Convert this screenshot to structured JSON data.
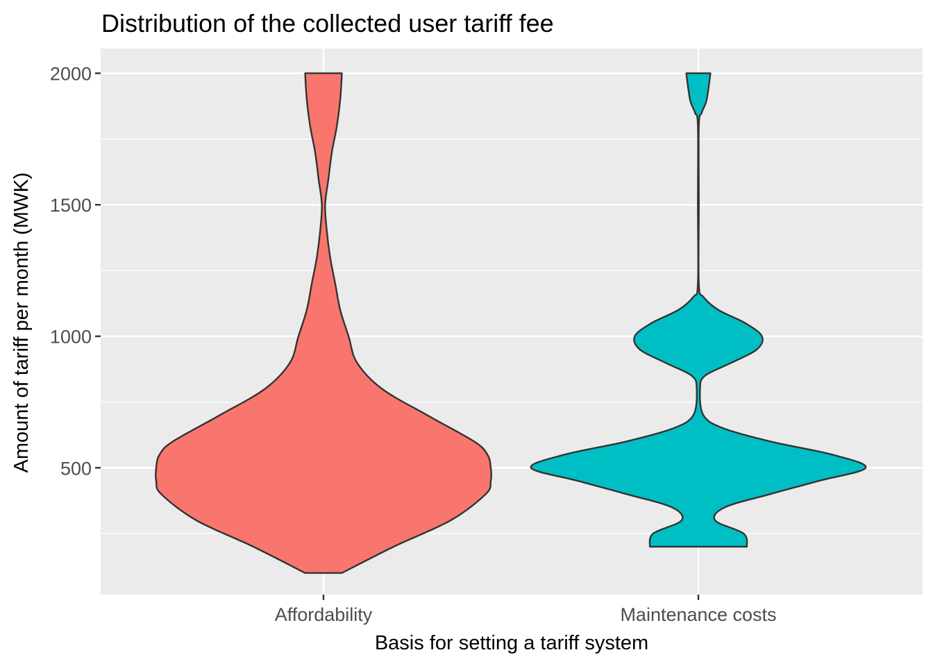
{
  "chart_data": {
    "type": "violin",
    "title": "Distribution of the collected user tariff fee",
    "xlabel": "Basis for setting a tariff system",
    "ylabel": "Amount of tariff per month (MWK)",
    "categories": [
      "Affordability",
      "Maintenance costs"
    ],
    "ylim": [
      0,
      2100
    ],
    "yticks": [
      500,
      1000,
      1500,
      2000
    ],
    "grid": true,
    "legend": "none",
    "series": [
      {
        "category": "Affordability",
        "color": "#F8766D",
        "min": 100,
        "max": 2000,
        "density": [
          [
            100,
            0.11
          ],
          [
            200,
            0.42
          ],
          [
            300,
            0.76
          ],
          [
            400,
            0.97
          ],
          [
            450,
            1.0
          ],
          [
            500,
            1.0
          ],
          [
            550,
            0.98
          ],
          [
            600,
            0.9
          ],
          [
            700,
            0.62
          ],
          [
            800,
            0.35
          ],
          [
            900,
            0.2
          ],
          [
            1000,
            0.15
          ],
          [
            1100,
            0.1
          ],
          [
            1200,
            0.07
          ],
          [
            1300,
            0.04
          ],
          [
            1400,
            0.02
          ],
          [
            1500,
            0.01
          ],
          [
            1600,
            0.03
          ],
          [
            1700,
            0.05
          ],
          [
            1800,
            0.08
          ],
          [
            1900,
            0.1
          ],
          [
            2000,
            0.11
          ]
        ]
      },
      {
        "category": "Maintenance costs",
        "color": "#00BFC4",
        "min": 200,
        "max": 2000,
        "density": [
          [
            200,
            0.29
          ],
          [
            250,
            0.27
          ],
          [
            300,
            0.1
          ],
          [
            350,
            0.16
          ],
          [
            400,
            0.43
          ],
          [
            450,
            0.72
          ],
          [
            500,
            1.0
          ],
          [
            550,
            0.8
          ],
          [
            600,
            0.43
          ],
          [
            650,
            0.15
          ],
          [
            700,
            0.03
          ],
          [
            800,
            0.01
          ],
          [
            850,
            0.04
          ],
          [
            900,
            0.2
          ],
          [
            950,
            0.35
          ],
          [
            1000,
            0.38
          ],
          [
            1050,
            0.28
          ],
          [
            1100,
            0.12
          ],
          [
            1150,
            0.03
          ],
          [
            1200,
            0.003
          ],
          [
            1500,
            0.003
          ],
          [
            1800,
            0.003
          ],
          [
            1850,
            0.02
          ],
          [
            1900,
            0.05
          ],
          [
            2000,
            0.072
          ]
        ]
      }
    ]
  }
}
